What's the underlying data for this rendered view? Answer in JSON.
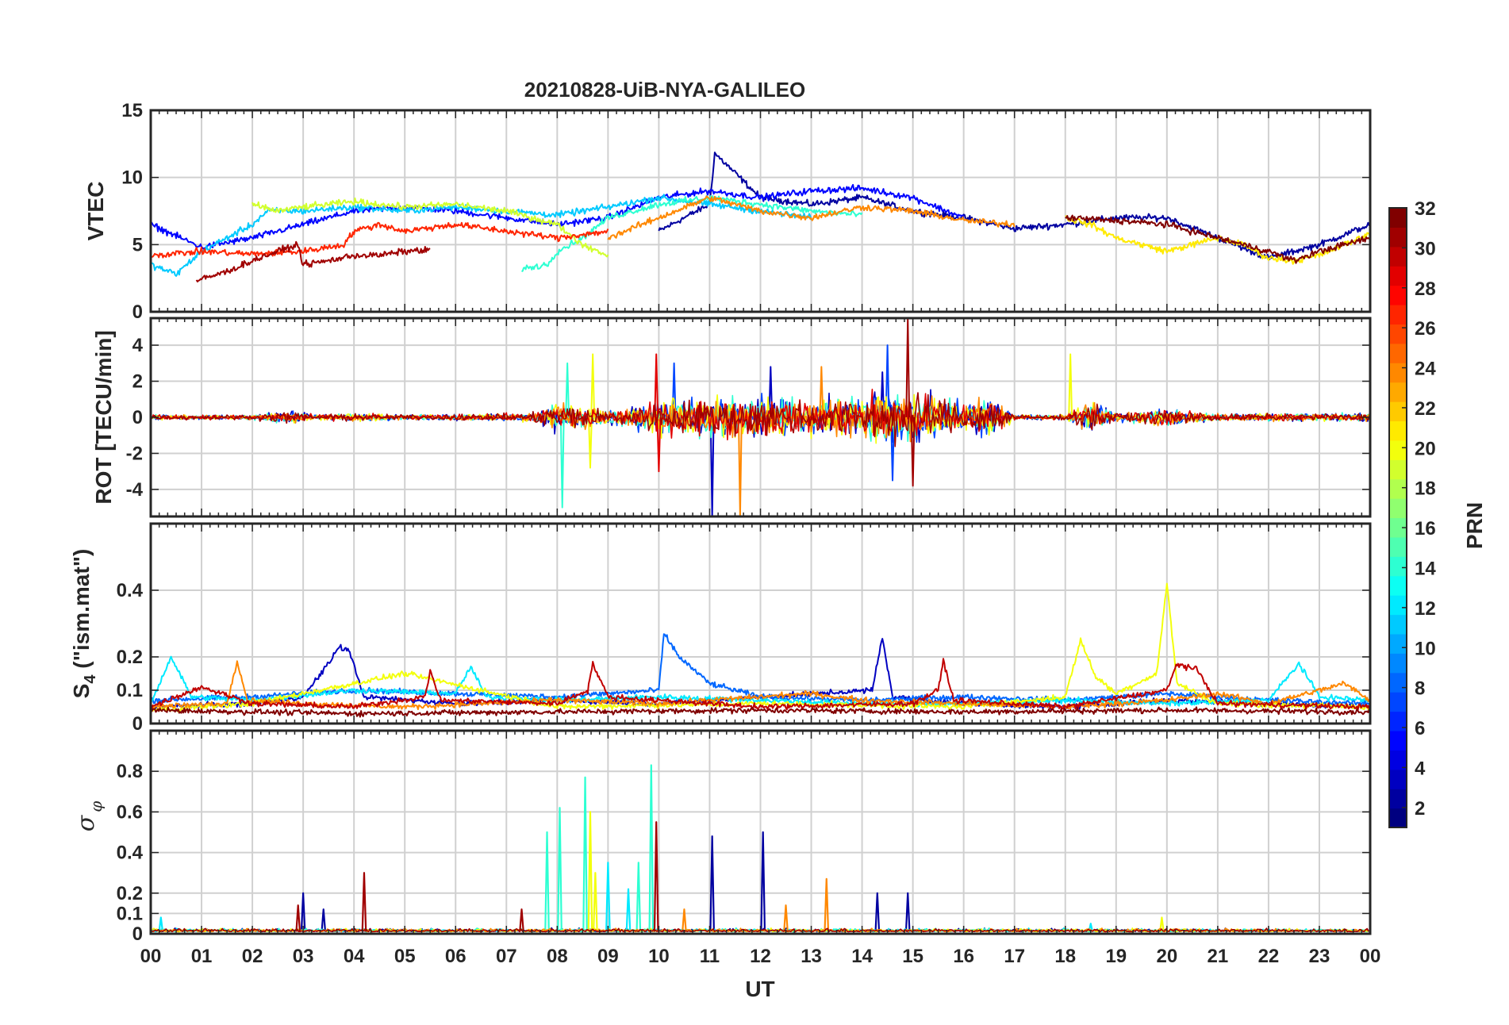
{
  "title": "20210828-UiB-NYA-GALILEO",
  "colors": {
    "axis": "#262626",
    "grid": "#d0d0d0",
    "background": "#ffffff"
  },
  "chart_data": [
    {
      "type": "line",
      "panel": "VTEC",
      "ylabel": "VTEC",
      "xlim": [
        0,
        24
      ],
      "ylim": [
        0,
        15
      ],
      "yticks": [
        0,
        5,
        10,
        15
      ],
      "grid": true,
      "series": [
        {
          "prn": 2,
          "x": [
            10,
            11,
            11.1,
            12,
            13,
            14,
            15,
            16,
            17,
            18,
            19,
            20,
            21,
            22,
            23,
            24
          ],
          "y": [
            6,
            8,
            11.8,
            8.5,
            8,
            8.5,
            7.5,
            7,
            6.2,
            6.5,
            7,
            7,
            5.5,
            4,
            5,
            6.5
          ]
        },
        {
          "prn": 5,
          "x": [
            0,
            1,
            2,
            3,
            4,
            5,
            6,
            7,
            8,
            9,
            10,
            11,
            12,
            13,
            14,
            15,
            16
          ],
          "y": [
            6.5,
            4.8,
            5.5,
            6.5,
            7.5,
            7.8,
            7.5,
            7,
            6.5,
            7,
            8.5,
            9,
            8.5,
            9,
            9.2,
            8.5,
            7
          ]
        },
        {
          "prn": 11,
          "x": [
            0,
            0.5,
            1,
            1.5,
            2,
            2.3,
            3,
            4,
            5,
            6,
            7,
            8,
            9,
            10,
            11,
            12,
            13
          ],
          "y": [
            3.5,
            2.8,
            4.5,
            5.5,
            6.5,
            7.5,
            7.5,
            7.8,
            7.5,
            7.8,
            7.5,
            7.2,
            7.8,
            8.5,
            8,
            7.5,
            7
          ]
        },
        {
          "prn": 14,
          "x": [
            7.3,
            7.8,
            8,
            8.5,
            9,
            9.5,
            10,
            11,
            12,
            13,
            14
          ],
          "y": [
            3.2,
            3.5,
            4.5,
            5.5,
            7,
            7.5,
            8,
            8.5,
            8,
            7.5,
            7.2
          ]
        },
        {
          "prn": 19,
          "x": [
            2,
            2.5,
            3,
            4,
            5,
            6,
            7,
            8,
            8.5,
            9
          ],
          "y": [
            8,
            7.5,
            7.8,
            8.2,
            7.8,
            8,
            7.5,
            6.5,
            5,
            4.2
          ]
        },
        {
          "prn": 21,
          "x": [
            18,
            18.5,
            19,
            19.5,
            20,
            20.5,
            21,
            21.5,
            22,
            22.5,
            23,
            23.5,
            24
          ],
          "y": [
            7,
            6.5,
            5.5,
            5,
            4.5,
            5,
            5.5,
            5,
            4,
            3.8,
            4.2,
            5,
            5.8
          ]
        },
        {
          "prn": 24,
          "x": [
            9,
            10,
            11,
            12,
            13,
            14,
            15,
            16,
            17
          ],
          "y": [
            5.5,
            7,
            8.5,
            7.5,
            7,
            7.8,
            7.5,
            6.8,
            6.5
          ]
        },
        {
          "prn": 27,
          "x": [
            0,
            1,
            2,
            3,
            3.8,
            4,
            4.5,
            5,
            6,
            7,
            8,
            9
          ],
          "y": [
            4.2,
            4.5,
            4.3,
            4.5,
            5,
            6,
            6.5,
            6,
            6.5,
            6,
            5.5,
            6
          ]
        },
        {
          "prn": 31,
          "x": [
            0.9,
            1.5,
            2,
            2.5,
            2.9,
            3,
            3.5,
            4,
            4.5,
            5,
            5.5
          ],
          "y": [
            2.3,
            3,
            3.8,
            4.5,
            5,
            3.5,
            3.8,
            4.2,
            4.2,
            4.5,
            4.6
          ]
        },
        {
          "prn": 32,
          "x": [
            18,
            19,
            20,
            21,
            22,
            22.5,
            23,
            23.5,
            24
          ],
          "y": [
            7,
            6.8,
            6.5,
            5.5,
            4.5,
            3.8,
            4.5,
            5,
            5.5
          ]
        }
      ]
    },
    {
      "type": "line",
      "panel": "ROT",
      "ylabel": "ROT [TECU/min]",
      "xlim": [
        0,
        24
      ],
      "ylim": [
        -5.5,
        5.5
      ],
      "yticks": [
        -4,
        -2,
        0,
        2,
        4
      ],
      "grid": true,
      "noise_envelope": {
        "x": [
          0,
          2,
          2.8,
          3.2,
          4,
          5,
          7.5,
          8,
          8.5,
          9,
          10,
          11,
          12,
          13,
          14,
          14.5,
          15,
          16,
          16.6,
          17,
          18,
          18.5,
          19,
          20,
          21,
          22,
          24
        ],
        "amp": [
          0.3,
          0.3,
          0.8,
          0.3,
          0.5,
          0.3,
          0.5,
          2,
          1.5,
          0.8,
          2,
          2.5,
          2.5,
          2.2,
          2.5,
          3.5,
          3,
          2,
          2.5,
          0.3,
          0.3,
          2,
          0.5,
          1,
          0.4,
          0.5,
          0.5
        ]
      },
      "series": [
        {
          "prn": 3,
          "spikes": [
            [
              11.05,
              -5.5
            ],
            [
              14.4,
              2.5
            ],
            [
              12.2,
              2.8
            ]
          ]
        },
        {
          "prn": 7,
          "spikes": [
            [
              14.5,
              4.0
            ],
            [
              14.6,
              -3.5
            ],
            [
              10.3,
              3.0
            ]
          ]
        },
        {
          "prn": 14,
          "spikes": [
            [
              8.1,
              -5.0
            ],
            [
              8.2,
              3.0
            ]
          ]
        },
        {
          "prn": 20,
          "spikes": [
            [
              8.7,
              3.5
            ],
            [
              8.65,
              -2.8
            ],
            [
              18.1,
              3.5
            ]
          ]
        },
        {
          "prn": 24,
          "spikes": [
            [
              11.6,
              -5.5
            ],
            [
              13.2,
              2.8
            ]
          ]
        },
        {
          "prn": 29,
          "spikes": [
            [
              9.95,
              3.5
            ],
            [
              10.0,
              -3.0
            ]
          ]
        },
        {
          "prn": 31,
          "spikes": [
            [
              14.9,
              5.5
            ],
            [
              15.0,
              -3.8
            ]
          ]
        }
      ]
    },
    {
      "type": "line",
      "panel": "S4",
      "ylabel": "S4 (\"ism.mat\")",
      "xlim": [
        0,
        24
      ],
      "ylim": [
        0,
        0.6
      ],
      "yticks": [
        0,
        0.1,
        0.2,
        0.4
      ],
      "grid": true,
      "series": [
        {
          "prn": 3,
          "x": [
            0,
            2,
            3,
            3.5,
            3.7,
            3.9,
            4.2,
            6,
            8,
            10,
            14.2,
            14.4,
            14.6,
            16,
            18,
            20,
            22,
            24
          ],
          "y": [
            0.05,
            0.06,
            0.08,
            0.18,
            0.23,
            0.22,
            0.08,
            0.06,
            0.07,
            0.06,
            0.1,
            0.26,
            0.08,
            0.06,
            0.05,
            0.07,
            0.06,
            0.05
          ]
        },
        {
          "prn": 8,
          "x": [
            0,
            2,
            4,
            6,
            8,
            10,
            10.1,
            10.4,
            11,
            12,
            14,
            16,
            18,
            20,
            22,
            24
          ],
          "y": [
            0.07,
            0.08,
            0.1,
            0.09,
            0.08,
            0.1,
            0.27,
            0.2,
            0.12,
            0.08,
            0.07,
            0.08,
            0.07,
            0.09,
            0.07,
            0.06
          ]
        },
        {
          "prn": 12,
          "x": [
            0,
            0.4,
            0.8,
            2,
            4,
            6,
            6.3,
            6.6,
            8,
            10,
            12,
            14,
            16,
            18,
            20,
            22,
            22.6,
            23,
            24
          ],
          "y": [
            0.06,
            0.2,
            0.08,
            0.07,
            0.1,
            0.09,
            0.17,
            0.08,
            0.07,
            0.08,
            0.07,
            0.06,
            0.06,
            0.07,
            0.06,
            0.07,
            0.18,
            0.08,
            0.07
          ]
        },
        {
          "prn": 20,
          "x": [
            0,
            2,
            4,
            5,
            8,
            12,
            16,
            18,
            18.3,
            18.6,
            19,
            19.8,
            20,
            20.2,
            21,
            24
          ],
          "y": [
            0.04,
            0.06,
            0.12,
            0.15,
            0.05,
            0.06,
            0.05,
            0.08,
            0.25,
            0.14,
            0.09,
            0.15,
            0.42,
            0.12,
            0.06,
            0.05
          ]
        },
        {
          "prn": 24,
          "x": [
            0,
            1.5,
            1.7,
            1.9,
            3,
            5,
            8,
            10,
            12,
            13,
            14,
            16,
            18,
            20,
            21,
            22,
            23.5,
            24
          ],
          "y": [
            0.05,
            0.06,
            0.19,
            0.07,
            0.06,
            0.05,
            0.07,
            0.06,
            0.08,
            0.09,
            0.07,
            0.06,
            0.05,
            0.07,
            0.09,
            0.06,
            0.12,
            0.07
          ]
        },
        {
          "prn": 30,
          "x": [
            0,
            1,
            2,
            4,
            5.4,
            5.5,
            5.7,
            8,
            8.6,
            8.7,
            9,
            12,
            15,
            15.5,
            15.6,
            15.8,
            18,
            20,
            20.2,
            20.6,
            21,
            24
          ],
          "y": [
            0.05,
            0.11,
            0.06,
            0.05,
            0.08,
            0.16,
            0.07,
            0.06,
            0.1,
            0.18,
            0.08,
            0.05,
            0.06,
            0.1,
            0.19,
            0.07,
            0.05,
            0.1,
            0.18,
            0.16,
            0.06,
            0.05
          ]
        },
        {
          "prn": 32,
          "x": [
            0,
            4,
            8,
            12,
            16,
            20,
            24
          ],
          "y": [
            0.04,
            0.03,
            0.035,
            0.04,
            0.035,
            0.04,
            0.035
          ]
        }
      ]
    },
    {
      "type": "line",
      "panel": "sigma_phi",
      "ylabel": "σ φ",
      "xlabel": "UT",
      "xlim": [
        0,
        24
      ],
      "ylim": [
        0,
        1.0
      ],
      "yticks": [
        0,
        0.1,
        0.2,
        0.4,
        0.6,
        0.8
      ],
      "xticks": [
        "00",
        "01",
        "02",
        "03",
        "04",
        "05",
        "06",
        "07",
        "08",
        "09",
        "10",
        "11",
        "12",
        "13",
        "14",
        "15",
        "16",
        "17",
        "18",
        "19",
        "20",
        "21",
        "22",
        "23",
        "00"
      ],
      "grid": true,
      "series": [
        {
          "prn": 2,
          "spikes": [
            [
              3.0,
              0.2
            ],
            [
              3.4,
              0.12
            ],
            [
              11.05,
              0.48
            ],
            [
              12.05,
              0.5
            ],
            [
              14.3,
              0.2
            ],
            [
              14.9,
              0.2
            ]
          ]
        },
        {
          "prn": 12,
          "spikes": [
            [
              0.2,
              0.08
            ],
            [
              9.0,
              0.35
            ],
            [
              9.4,
              0.22
            ],
            [
              18.5,
              0.05
            ]
          ]
        },
        {
          "prn": 14,
          "spikes": [
            [
              7.8,
              0.5
            ],
            [
              8.05,
              0.62
            ],
            [
              8.55,
              0.77
            ],
            [
              9.85,
              0.83
            ],
            [
              9.6,
              0.35
            ]
          ]
        },
        {
          "prn": 20,
          "spikes": [
            [
              8.65,
              0.6
            ],
            [
              8.75,
              0.3
            ],
            [
              19.9,
              0.08
            ]
          ]
        },
        {
          "prn": 24,
          "spikes": [
            [
              13.3,
              0.27
            ],
            [
              12.5,
              0.14
            ],
            [
              10.5,
              0.12
            ]
          ]
        },
        {
          "prn": 31,
          "spikes": [
            [
              2.9,
              0.14
            ],
            [
              4.2,
              0.3
            ],
            [
              9.95,
              0.55
            ],
            [
              7.3,
              0.12
            ]
          ]
        }
      ]
    }
  ],
  "colorbar": {
    "label": "PRN",
    "min": 1,
    "max": 32,
    "ticks": [
      "2",
      "4",
      "6",
      "8",
      "10",
      "12",
      "14",
      "16",
      "18",
      "20",
      "22",
      "24",
      "26",
      "28",
      "30",
      "32"
    ],
    "colormap": "jet"
  }
}
